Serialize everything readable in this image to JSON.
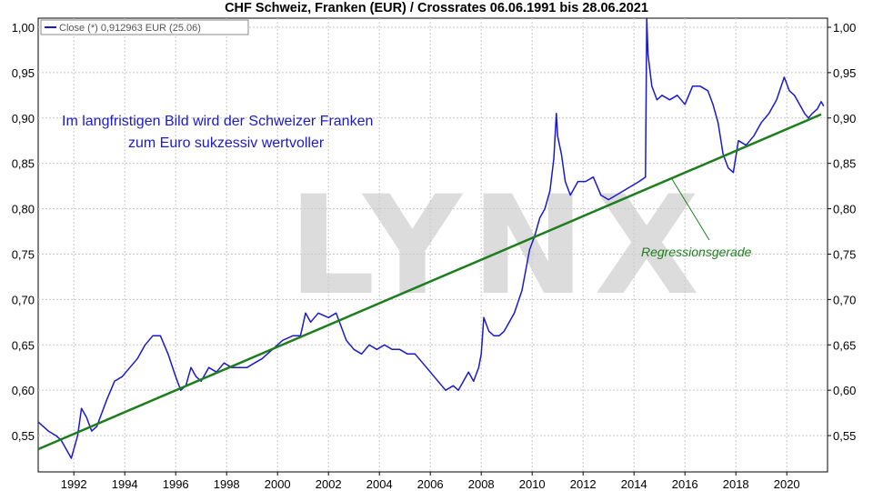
{
  "chart_data": {
    "type": "line",
    "title": "CHF Schweiz, Franken (EUR) / Crossrates 06.06.1991 bis 28.06.2021",
    "legend": "Close (*) 0,912963 EUR (25.06)",
    "legend_position": "top-left",
    "grid": true,
    "watermark": "LYNX",
    "annotations": [
      "Im langfristigen Bild wird der Schweizer Franken",
      "zum Euro sukzessiv wertvoller",
      "Regressionsgerade"
    ],
    "x_ticks": [
      "1992",
      "1994",
      "1996",
      "1998",
      "2000",
      "2002",
      "2004",
      "2006",
      "2008",
      "2010",
      "2012",
      "2014",
      "2016",
      "2018",
      "2020"
    ],
    "y_ticks": [
      "0,55",
      "0,60",
      "0,65",
      "0,70",
      "0,75",
      "0,80",
      "0,85",
      "0,90",
      "0,95",
      "1,00"
    ],
    "xlim": [
      1990.6,
      2021.6
    ],
    "ylim": [
      0.51,
      1.01
    ],
    "series": [
      {
        "name": "Close (*)",
        "color": "#1a1acc",
        "x": [
          1990.6,
          1990.8,
          1991.0,
          1991.3,
          1991.5,
          1991.7,
          1991.9,
          1992.0,
          1992.15,
          1992.3,
          1992.5,
          1992.7,
          1992.9,
          1993.1,
          1993.3,
          1993.6,
          1993.9,
          1994.2,
          1994.5,
          1994.8,
          1995.1,
          1995.4,
          1995.7,
          1996.0,
          1996.2,
          1996.4,
          1996.6,
          1996.8,
          1997.0,
          1997.3,
          1997.6,
          1997.9,
          1998.2,
          1998.5,
          1998.8,
          1999.1,
          1999.4,
          1999.8,
          2000.2,
          2000.6,
          2000.9,
          2001.1,
          2001.3,
          2001.6,
          2002.0,
          2002.3,
          2002.5,
          2002.7,
          2003.0,
          2003.3,
          2003.6,
          2003.9,
          2004.2,
          2004.5,
          2004.8,
          2005.1,
          2005.4,
          2005.7,
          2006.0,
          2006.3,
          2006.6,
          2006.9,
          2007.1,
          2007.3,
          2007.5,
          2007.7,
          2007.9,
          2008.0,
          2008.1,
          2008.3,
          2008.5,
          2008.7,
          2008.9,
          2009.1,
          2009.3,
          2009.6,
          2009.9,
          2010.1,
          2010.3,
          2010.5,
          2010.7,
          2010.85,
          2010.95,
          2011.0,
          2011.15,
          2011.3,
          2011.5,
          2011.8,
          2012.1,
          2012.4,
          2012.7,
          2013.0,
          2013.3,
          2013.6,
          2013.9,
          2014.2,
          2014.45,
          2014.5,
          2014.55,
          2014.7,
          2014.9,
          2015.1,
          2015.4,
          2015.7,
          2016.0,
          2016.3,
          2016.6,
          2016.9,
          2017.1,
          2017.3,
          2017.5,
          2017.7,
          2017.9,
          2018.1,
          2018.4,
          2018.7,
          2019.0,
          2019.3,
          2019.6,
          2019.9,
          2020.1,
          2020.3,
          2020.5,
          2020.7,
          2020.85,
          2021.0,
          2021.2,
          2021.35,
          2021.45
        ],
        "values": [
          0.565,
          0.56,
          0.555,
          0.55,
          0.545,
          0.535,
          0.525,
          0.535,
          0.55,
          0.58,
          0.57,
          0.555,
          0.56,
          0.575,
          0.59,
          0.61,
          0.615,
          0.625,
          0.635,
          0.65,
          0.66,
          0.66,
          0.64,
          0.615,
          0.6,
          0.605,
          0.625,
          0.615,
          0.61,
          0.625,
          0.62,
          0.63,
          0.625,
          0.625,
          0.625,
          0.63,
          0.635,
          0.645,
          0.655,
          0.66,
          0.66,
          0.685,
          0.675,
          0.685,
          0.68,
          0.685,
          0.67,
          0.655,
          0.645,
          0.64,
          0.65,
          0.645,
          0.65,
          0.645,
          0.645,
          0.64,
          0.64,
          0.63,
          0.62,
          0.61,
          0.6,
          0.605,
          0.6,
          0.61,
          0.62,
          0.61,
          0.625,
          0.64,
          0.68,
          0.665,
          0.66,
          0.66,
          0.665,
          0.675,
          0.685,
          0.71,
          0.755,
          0.77,
          0.79,
          0.8,
          0.82,
          0.855,
          0.905,
          0.88,
          0.86,
          0.83,
          0.815,
          0.83,
          0.83,
          0.835,
          0.815,
          0.81,
          0.815,
          0.82,
          0.825,
          0.83,
          0.835,
          1.01,
          0.97,
          0.935,
          0.92,
          0.925,
          0.92,
          0.925,
          0.915,
          0.935,
          0.935,
          0.93,
          0.915,
          0.895,
          0.86,
          0.845,
          0.84,
          0.875,
          0.87,
          0.88,
          0.895,
          0.905,
          0.92,
          0.945,
          0.93,
          0.925,
          0.915,
          0.905,
          0.9,
          0.905,
          0.91,
          0.918,
          0.913
        ]
      },
      {
        "name": "Regressionsgerade",
        "color": "#1e7d1e",
        "x": [
          1990.6,
          2021.35
        ],
        "values": [
          0.535,
          0.904
        ]
      }
    ]
  }
}
